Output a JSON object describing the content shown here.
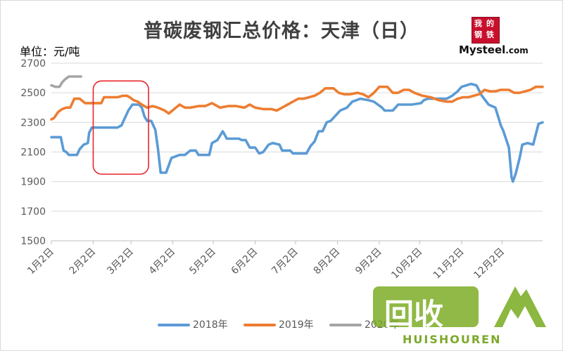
{
  "unit_label": "单位：元/吨",
  "logo": {
    "cn": "我的钢铁",
    "brand": "Mysteel",
    "domain": ".com"
  },
  "watermark": {
    "cn": "回收",
    "en": "HUISHOUREN"
  },
  "colors": {
    "s2018": "#5b9bd5",
    "s2019": "#ed7d31",
    "s2020": "#a5a5a5",
    "highlight": "#e8262c",
    "grid": "#d9d9d9",
    "axis_text": "#595959"
  },
  "chart_data": {
    "type": "line",
    "title": "普碳废钢汇总价格：天津（日）",
    "ylabel": "单位：元/吨",
    "ylim": [
      1500,
      2700
    ],
    "yticks": [
      1500,
      1700,
      1900,
      2100,
      2300,
      2500,
      2700
    ],
    "xlim": [
      1,
      365
    ],
    "xticks": [
      {
        "x": 1,
        "label": "1月2日"
      },
      {
        "x": 32,
        "label": "2月2日"
      },
      {
        "x": 60,
        "label": "3月2日"
      },
      {
        "x": 91,
        "label": "4月2日"
      },
      {
        "x": 121,
        "label": "5月2日"
      },
      {
        "x": 152,
        "label": "6月2日"
      },
      {
        "x": 182,
        "label": "7月2日"
      },
      {
        "x": 213,
        "label": "8月2日"
      },
      {
        "x": 244,
        "label": "9月2日"
      },
      {
        "x": 274,
        "label": "10月2日"
      },
      {
        "x": 305,
        "label": "11月2日"
      },
      {
        "x": 335,
        "label": "12月2日"
      }
    ],
    "grid": true,
    "legend_position": "bottom",
    "highlight_box": {
      "x": [
        32,
        73
      ],
      "y": [
        1950,
        2580
      ]
    },
    "series": [
      {
        "name": "2018年",
        "color": "#5b9bd5",
        "points": [
          [
            1,
            2200
          ],
          [
            8,
            2200
          ],
          [
            10,
            2110
          ],
          [
            12,
            2100
          ],
          [
            14,
            2080
          ],
          [
            20,
            2080
          ],
          [
            22,
            2120
          ],
          [
            25,
            2150
          ],
          [
            28,
            2160
          ],
          [
            29,
            2230
          ],
          [
            31,
            2265
          ],
          [
            50,
            2265
          ],
          [
            53,
            2280
          ],
          [
            55,
            2320
          ],
          [
            58,
            2380
          ],
          [
            61,
            2420
          ],
          [
            66,
            2420
          ],
          [
            68,
            2400
          ],
          [
            70,
            2340
          ],
          [
            72,
            2310
          ],
          [
            75,
            2310
          ],
          [
            78,
            2250
          ],
          [
            80,
            2120
          ],
          [
            82,
            1960
          ],
          [
            86,
            1960
          ],
          [
            90,
            2060
          ],
          [
            96,
            2080
          ],
          [
            100,
            2080
          ],
          [
            104,
            2110
          ],
          [
            108,
            2110
          ],
          [
            110,
            2080
          ],
          [
            118,
            2080
          ],
          [
            120,
            2160
          ],
          [
            124,
            2180
          ],
          [
            128,
            2240
          ],
          [
            131,
            2190
          ],
          [
            140,
            2190
          ],
          [
            142,
            2180
          ],
          [
            145,
            2180
          ],
          [
            148,
            2130
          ],
          [
            152,
            2130
          ],
          [
            155,
            2090
          ],
          [
            158,
            2100
          ],
          [
            162,
            2150
          ],
          [
            165,
            2160
          ],
          [
            170,
            2150
          ],
          [
            172,
            2110
          ],
          [
            178,
            2110
          ],
          [
            180,
            2090
          ],
          [
            190,
            2090
          ],
          [
            193,
            2140
          ],
          [
            196,
            2170
          ],
          [
            199,
            2240
          ],
          [
            202,
            2240
          ],
          [
            205,
            2300
          ],
          [
            208,
            2310
          ],
          [
            212,
            2350
          ],
          [
            215,
            2380
          ],
          [
            220,
            2400
          ],
          [
            224,
            2440
          ],
          [
            230,
            2460
          ],
          [
            236,
            2450
          ],
          [
            240,
            2440
          ],
          [
            246,
            2400
          ],
          [
            248,
            2380
          ],
          [
            254,
            2380
          ],
          [
            258,
            2420
          ],
          [
            262,
            2420
          ],
          [
            268,
            2420
          ],
          [
            275,
            2430
          ],
          [
            277,
            2450
          ],
          [
            280,
            2460
          ],
          [
            294,
            2460
          ],
          [
            298,
            2480
          ],
          [
            302,
            2510
          ],
          [
            305,
            2540
          ],
          [
            312,
            2560
          ],
          [
            316,
            2550
          ],
          [
            320,
            2480
          ],
          [
            325,
            2420
          ],
          [
            330,
            2400
          ],
          [
            334,
            2280
          ],
          [
            336,
            2240
          ],
          [
            340,
            2130
          ],
          [
            342,
            1930
          ],
          [
            343,
            1900
          ],
          [
            345,
            1950
          ],
          [
            348,
            2060
          ],
          [
            350,
            2150
          ],
          [
            354,
            2160
          ],
          [
            358,
            2150
          ],
          [
            362,
            2290
          ],
          [
            365,
            2300
          ]
        ]
      },
      {
        "name": "2019年",
        "color": "#ed7d31",
        "points": [
          [
            1,
            2320
          ],
          [
            3,
            2330
          ],
          [
            6,
            2370
          ],
          [
            9,
            2390
          ],
          [
            12,
            2400
          ],
          [
            15,
            2400
          ],
          [
            18,
            2460
          ],
          [
            22,
            2460
          ],
          [
            26,
            2430
          ],
          [
            30,
            2430
          ],
          [
            35,
            2430
          ],
          [
            38,
            2430
          ],
          [
            40,
            2470
          ],
          [
            45,
            2470
          ],
          [
            50,
            2470
          ],
          [
            54,
            2480
          ],
          [
            57,
            2480
          ],
          [
            59,
            2470
          ],
          [
            62,
            2450
          ],
          [
            65,
            2440
          ],
          [
            68,
            2420
          ],
          [
            72,
            2400
          ],
          [
            76,
            2410
          ],
          [
            80,
            2400
          ],
          [
            85,
            2380
          ],
          [
            88,
            2360
          ],
          [
            92,
            2390
          ],
          [
            96,
            2420
          ],
          [
            100,
            2400
          ],
          [
            104,
            2400
          ],
          [
            110,
            2410
          ],
          [
            115,
            2410
          ],
          [
            120,
            2430
          ],
          [
            126,
            2400
          ],
          [
            132,
            2410
          ],
          [
            138,
            2410
          ],
          [
            144,
            2400
          ],
          [
            148,
            2420
          ],
          [
            152,
            2400
          ],
          [
            158,
            2390
          ],
          [
            164,
            2390
          ],
          [
            168,
            2380
          ],
          [
            172,
            2400
          ],
          [
            176,
            2420
          ],
          [
            180,
            2440
          ],
          [
            184,
            2460
          ],
          [
            188,
            2460
          ],
          [
            192,
            2470
          ],
          [
            196,
            2480
          ],
          [
            200,
            2500
          ],
          [
            204,
            2530
          ],
          [
            210,
            2530
          ],
          [
            214,
            2500
          ],
          [
            218,
            2490
          ],
          [
            222,
            2490
          ],
          [
            228,
            2500
          ],
          [
            232,
            2490
          ],
          [
            236,
            2470
          ],
          [
            240,
            2500
          ],
          [
            244,
            2540
          ],
          [
            250,
            2540
          ],
          [
            254,
            2500
          ],
          [
            258,
            2500
          ],
          [
            262,
            2520
          ],
          [
            266,
            2520
          ],
          [
            270,
            2500
          ],
          [
            276,
            2480
          ],
          [
            282,
            2470
          ],
          [
            288,
            2450
          ],
          [
            294,
            2440
          ],
          [
            298,
            2440
          ],
          [
            302,
            2460
          ],
          [
            306,
            2470
          ],
          [
            310,
            2470
          ],
          [
            314,
            2480
          ],
          [
            318,
            2490
          ],
          [
            322,
            2520
          ],
          [
            326,
            2510
          ],
          [
            330,
            2510
          ],
          [
            334,
            2520
          ],
          [
            340,
            2520
          ],
          [
            344,
            2500
          ],
          [
            348,
            2500
          ],
          [
            352,
            2510
          ],
          [
            356,
            2520
          ],
          [
            360,
            2540
          ],
          [
            365,
            2540
          ]
        ]
      },
      {
        "name": "2020年",
        "color": "#a5a5a5",
        "points": [
          [
            1,
            2550
          ],
          [
            4,
            2540
          ],
          [
            7,
            2540
          ],
          [
            9,
            2570
          ],
          [
            11,
            2590
          ],
          [
            14,
            2610
          ],
          [
            20,
            2610
          ],
          [
            23,
            2610
          ]
        ]
      }
    ]
  }
}
